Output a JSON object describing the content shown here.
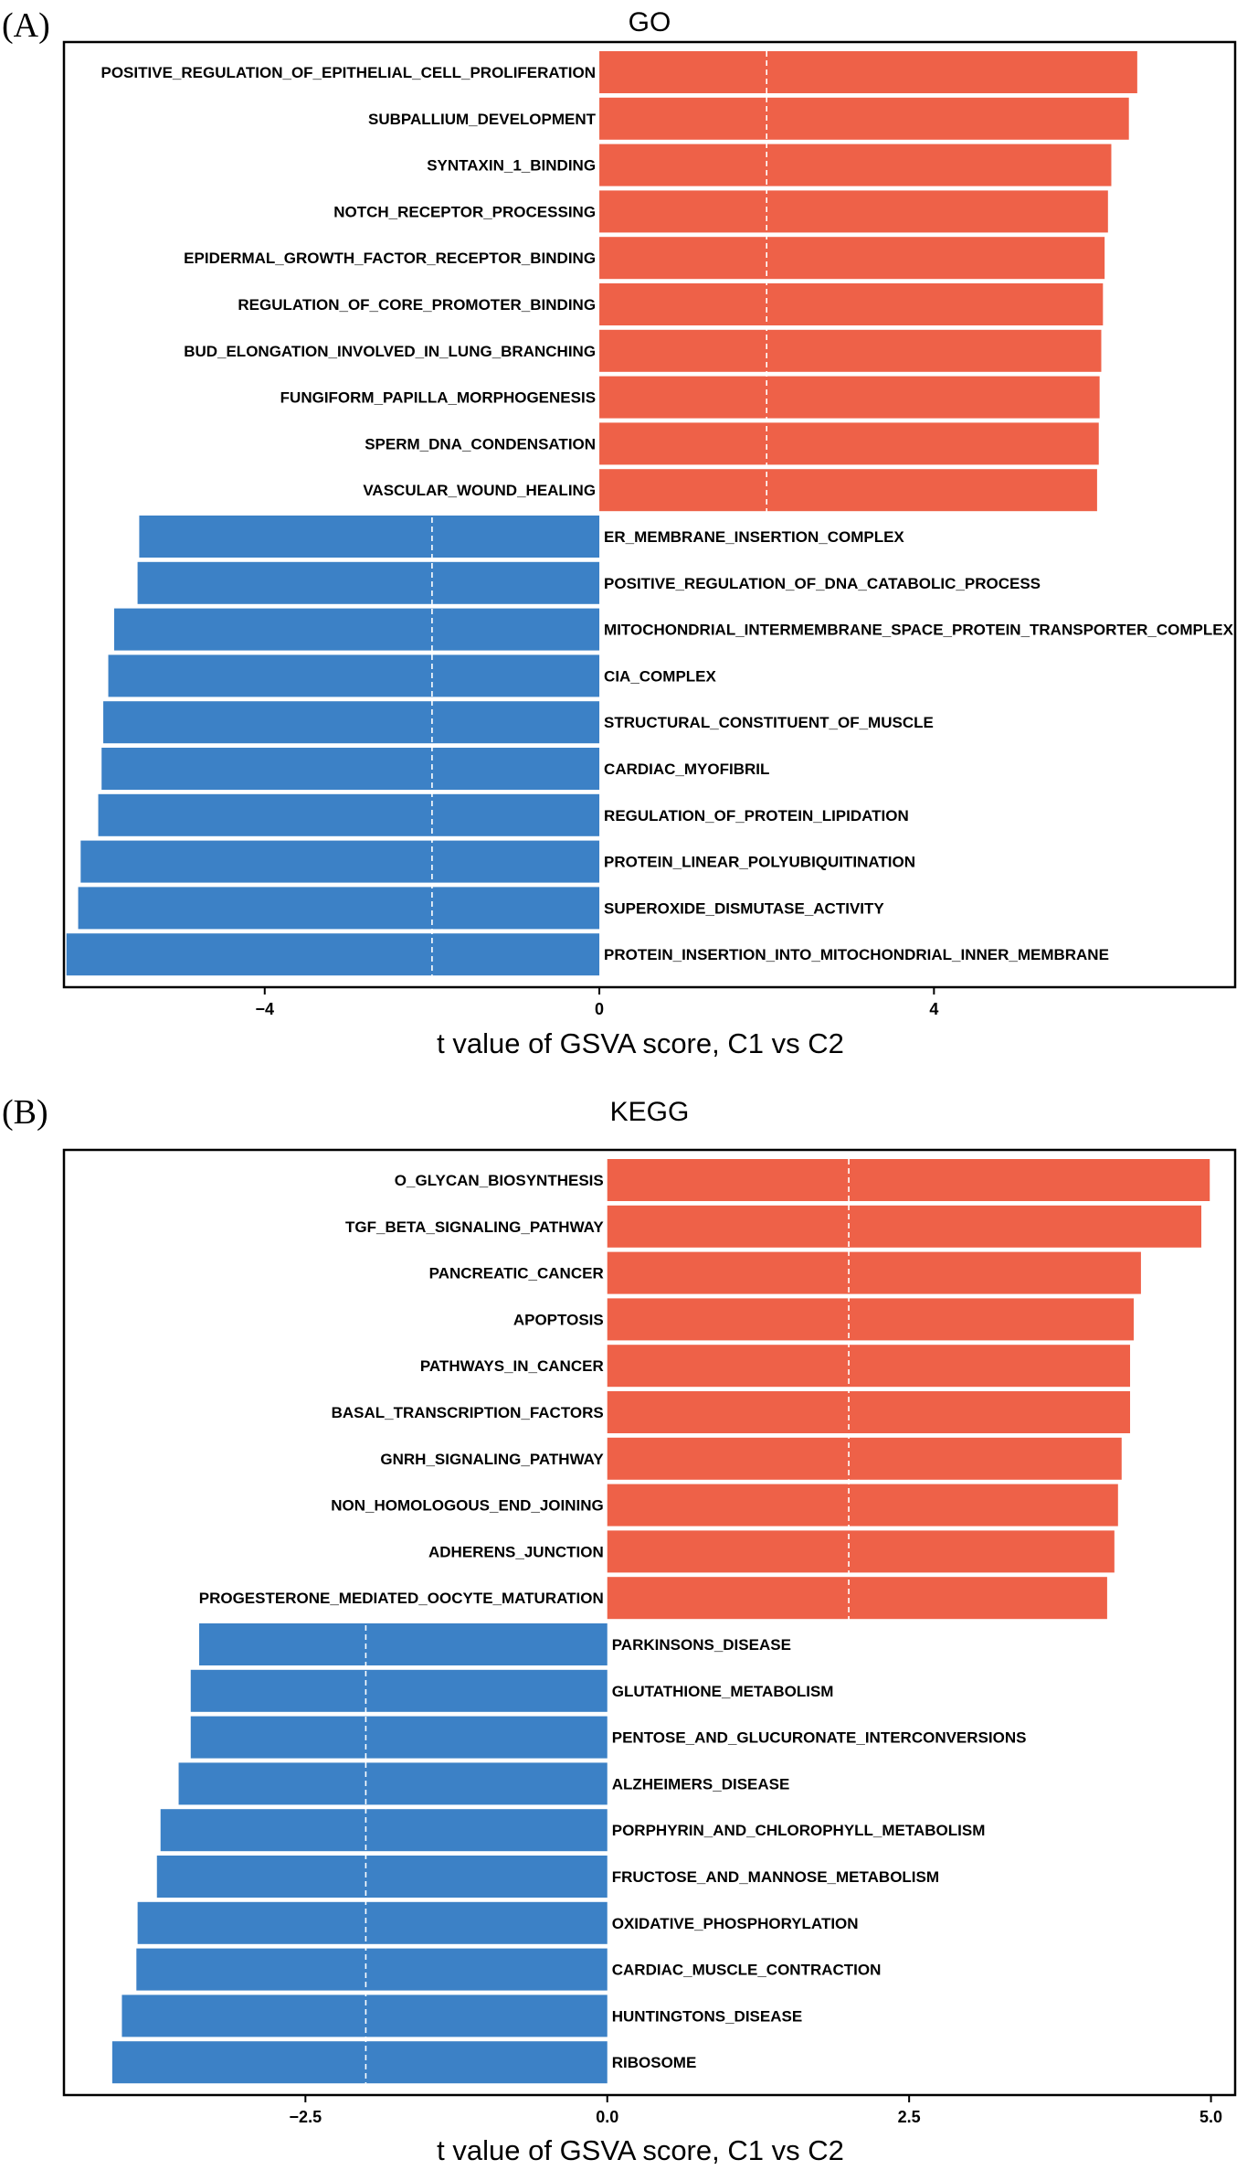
{
  "chart_data": [
    {
      "panel": "(A)",
      "type": "bar",
      "orientation": "horizontal",
      "title": "GO",
      "xlabel": "t value of GSVA score, C1 vs C2",
      "xlim": [
        -6.4,
        7.6
      ],
      "xticks": [
        -4,
        0,
        4
      ],
      "xtick_labels": [
        "−4",
        "0",
        "4"
      ],
      "reference_lines": [
        -2,
        2
      ],
      "colors": {
        "positive": "#EE6148",
        "negative": "#3C81C6"
      },
      "grid": false,
      "categories": [
        "POSITIVE_REGULATION_OF_EPITHELIAL_CELL_PROLIFERATION",
        "SUBPALLIUM_DEVELOPMENT",
        "SYNTAXIN_1_BINDING",
        "NOTCH_RECEPTOR_PROCESSING",
        "EPIDERMAL_GROWTH_FACTOR_RECEPTOR_BINDING",
        "REGULATION_OF_CORE_PROMOTER_BINDING",
        "BUD_ELONGATION_INVOLVED_IN_LUNG_BRANCHING",
        "FUNGIFORM_PAPILLA_MORPHOGENESIS",
        "SPERM_DNA_CONDENSATION",
        "VASCULAR_WOUND_HEALING",
        "ER_MEMBRANE_INSERTION_COMPLEX",
        "POSITIVE_REGULATION_OF_DNA_CATABOLIC_PROCESS",
        "MITOCHONDRIAL_INTERMEMBRANE_SPACE_PROTEIN_TRANSPORTER_COMPLEX",
        "CIA_COMPLEX",
        "STRUCTURAL_CONSTITUENT_OF_MUSCLE",
        "CARDIAC_MYOFIBRIL",
        "REGULATION_OF_PROTEIN_LIPIDATION",
        "PROTEIN_LINEAR_POLYUBIQUITINATION",
        "SUPEROXIDE_DISMUTASE_ACTIVITY",
        "PROTEIN_INSERTION_INTO_MITOCHONDRIAL_INNER_MEMBRANE"
      ],
      "values": [
        6.43,
        6.33,
        6.12,
        6.08,
        6.04,
        6.02,
        6.0,
        5.98,
        5.97,
        5.95,
        -5.5,
        -5.52,
        -5.8,
        -5.87,
        -5.93,
        -5.95,
        -5.99,
        -6.2,
        -6.23,
        -6.37
      ]
    },
    {
      "panel": "(B)",
      "type": "bar",
      "orientation": "horizontal",
      "title": "KEGG",
      "xlabel": "t value of GSVA score, C1 vs C2",
      "xlim": [
        -4.5,
        5.2
      ],
      "xticks": [
        -2.5,
        0.0,
        2.5,
        5.0
      ],
      "xtick_labels": [
        "−2.5",
        "0.0",
        "2.5",
        "5.0"
      ],
      "reference_lines": [
        -2,
        2
      ],
      "colors": {
        "positive": "#EE6148",
        "negative": "#3C81C6"
      },
      "grid": false,
      "categories": [
        "O_GLYCAN_BIOSYNTHESIS",
        "TGF_BETA_SIGNALING_PATHWAY",
        "PANCREATIC_CANCER",
        "APOPTOSIS",
        "PATHWAYS_IN_CANCER",
        "BASAL_TRANSCRIPTION_FACTORS",
        "GNRH_SIGNALING_PATHWAY",
        "NON_HOMOLOGOUS_END_JOINING",
        "ADHERENS_JUNCTION",
        "PROGESTERONE_MEDIATED_OOCYTE_MATURATION",
        "PARKINSONS_DISEASE",
        "GLUTATHIONE_METABOLISM",
        "PENTOSE_AND_GLUCURONATE_INTERCONVERSIONS",
        "ALZHEIMERS_DISEASE",
        "PORPHYRIN_AND_CHLOROPHYLL_METABOLISM",
        "FRUCTOSE_AND_MANNOSE_METABOLISM",
        "OXIDATIVE_PHOSPHORYLATION",
        "CARDIAC_MUSCLE_CONTRACTION",
        "HUNTINGTONS_DISEASE",
        "RIBOSOME"
      ],
      "values": [
        4.99,
        4.92,
        4.42,
        4.36,
        4.33,
        4.33,
        4.26,
        4.23,
        4.2,
        4.14,
        -3.38,
        -3.45,
        -3.45,
        -3.55,
        -3.7,
        -3.73,
        -3.89,
        -3.9,
        -4.02,
        -4.1
      ]
    }
  ]
}
